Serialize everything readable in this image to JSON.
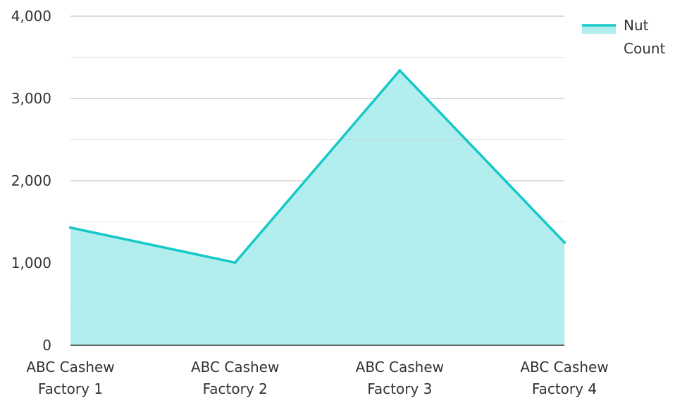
{
  "chart_data": {
    "type": "area",
    "categories": [
      [
        "ABC Cashew",
        "Factory 1"
      ],
      [
        "ABC Cashew",
        "Factory 2"
      ],
      [
        "ABC Cashew",
        "Factory 3"
      ],
      [
        "ABC Cashew",
        "Factory 4"
      ]
    ],
    "series": [
      {
        "name": "Nut Count",
        "values": [
          1430,
          1005,
          3340,
          1250
        ]
      }
    ],
    "legend": {
      "labels": [
        "Nut",
        "Count"
      ],
      "position": "top-right"
    },
    "yticks": [
      {
        "value": 0,
        "label": "0"
      },
      {
        "value": 1000,
        "label": "1,000"
      },
      {
        "value": 2000,
        "label": "2,000"
      },
      {
        "value": 3000,
        "label": "3,000"
      },
      {
        "value": 4000,
        "label": "4,000"
      }
    ],
    "ylim": [
      0,
      4000
    ],
    "grid": true,
    "colors": {
      "line": "#17c8c8",
      "fill": "#b2eeee",
      "grid": "#c8c8c8",
      "axis": "#333333"
    }
  }
}
